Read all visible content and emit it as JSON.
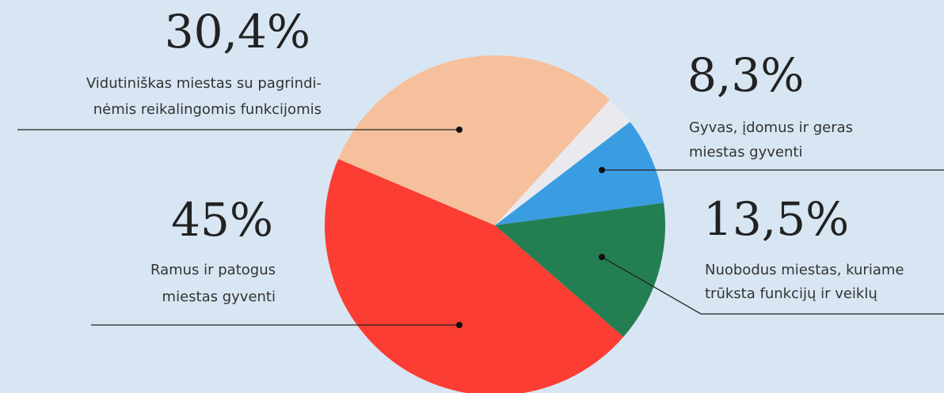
{
  "chart_data": {
    "type": "pie",
    "categories": [
      [
        "Ramus ir patogus",
        "miestas gyventi"
      ],
      [
        "Vidutiniškas miestas su pagrindi-",
        "nėmis reikalingomis funkcijomis"
      ],
      null,
      [
        "Gyvas, įdomus ir geras",
        "miestas gyventi"
      ],
      [
        "Nuobodus miestas, kuriame",
        "trūksta funkcijų ir veiklų"
      ]
    ],
    "values": [
      45,
      30.4,
      2.8,
      8.3,
      13.5
    ],
    "value_labels": [
      "45%",
      "30,4%",
      null,
      "8,3%",
      "13,5%"
    ],
    "colors": [
      "#fc3d33",
      "#f5c09b",
      "#e9e9ee",
      "#3a9de2",
      "#237f52"
    ]
  }
}
